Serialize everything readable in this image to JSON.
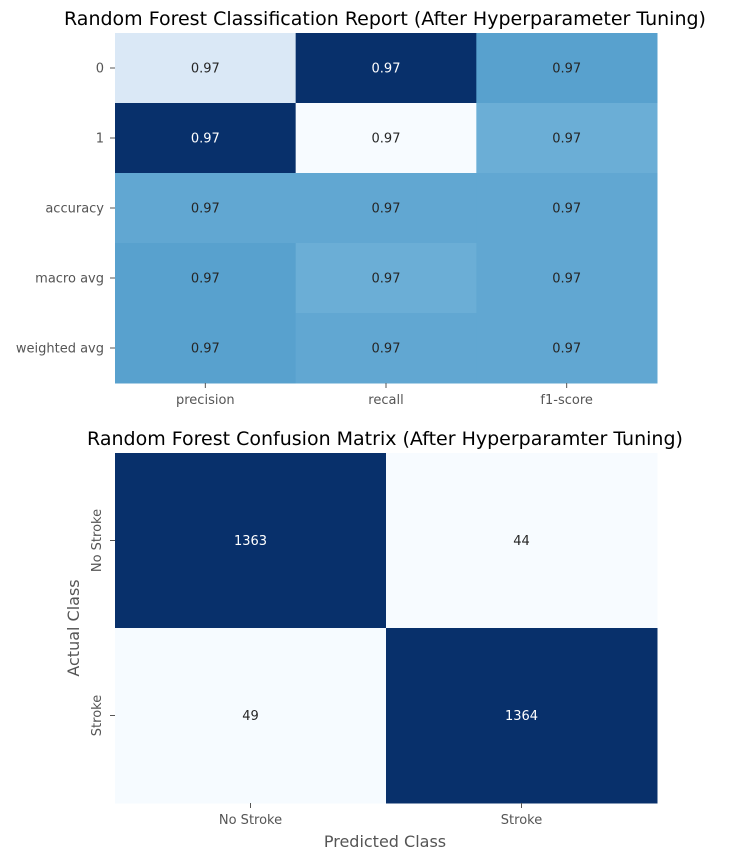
{
  "chart_data": [
    {
      "type": "heatmap",
      "title": "Random Forest Classification Report (After Hyperparameter Tuning)",
      "xlabel": "",
      "ylabel": "",
      "colormap": "Blues",
      "colorbar": false,
      "rows": [
        "0",
        "1",
        "accuracy",
        "macro avg",
        "weighted avg"
      ],
      "columns": [
        "precision",
        "recall",
        "f1-score"
      ],
      "values": [
        [
          0.9658,
          0.9687,
          0.9672
        ],
        [
          0.9687,
          0.9653,
          0.967
        ],
        [
          0.9671,
          0.9671,
          0.9671
        ],
        [
          0.9672,
          0.967,
          0.9671
        ],
        [
          0.9672,
          0.9671,
          0.9671
        ]
      ],
      "labels": [
        [
          "0.97",
          "0.97",
          "0.97"
        ],
        [
          "0.97",
          "0.97",
          "0.97"
        ],
        [
          "0.97",
          "0.97",
          "0.97"
        ],
        [
          "0.97",
          "0.97",
          "0.97"
        ],
        [
          "0.97",
          "0.97",
          "0.97"
        ]
      ]
    },
    {
      "type": "heatmap",
      "title": "Random Forest Confusion Matrix (After Hyperparamter Tuning)",
      "xlabel": "Predicted Class",
      "ylabel": "Actual Class",
      "colormap": "Blues",
      "colorbar": false,
      "rows": [
        "No Stroke",
        "Stroke"
      ],
      "columns": [
        "No Stroke",
        "Stroke"
      ],
      "values": [
        [
          1363,
          44
        ],
        [
          49,
          1364
        ]
      ],
      "labels": [
        [
          "1363",
          "44"
        ],
        [
          "49",
          "1364"
        ]
      ]
    }
  ]
}
